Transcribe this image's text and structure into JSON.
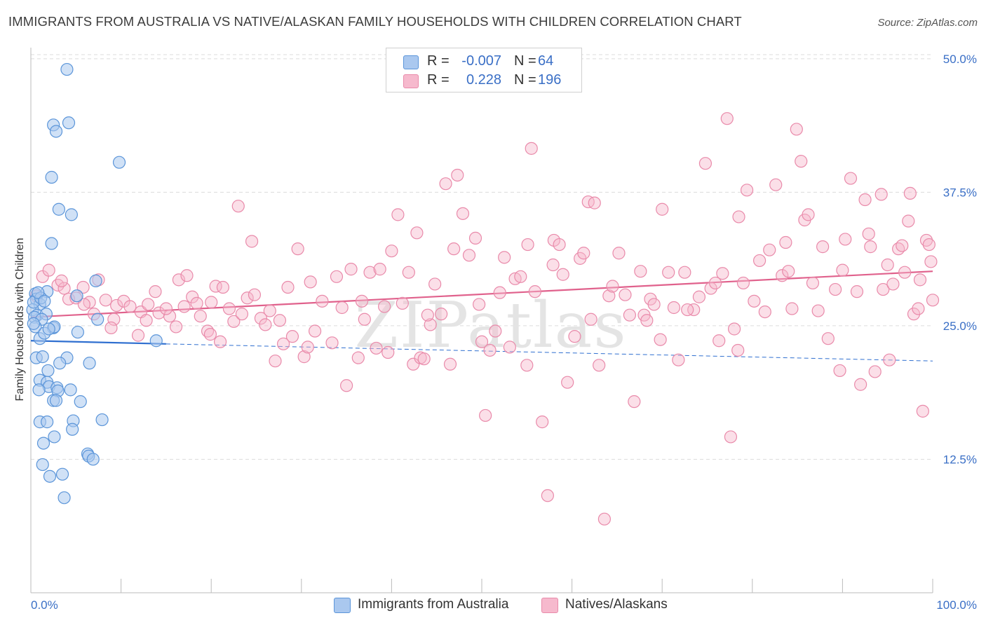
{
  "title": "IMMIGRANTS FROM AUSTRALIA VS NATIVE/ALASKAN FAMILY HOUSEHOLDS WITH CHILDREN CORRELATION CHART",
  "source": "Source: ZipAtlas.com",
  "watermark": "ZIPatlas",
  "legend": {
    "rows": [
      {
        "r_label": "R =",
        "r_value": "-0.007",
        "n_label": "N =",
        "n_value": "64"
      },
      {
        "r_label": "R =",
        "r_value": "0.228",
        "n_label": "N =",
        "n_value": "196"
      }
    ]
  },
  "bottom_legend": [
    "Immigrants from Australia",
    "Natives/Alaskans"
  ],
  "colors": {
    "blue_fill": "#aac8ef",
    "blue_stroke": "#5b95d9",
    "blue_line": "#2f6fd0",
    "pink_fill": "#f6b9cd",
    "pink_stroke": "#e98aaa",
    "pink_line": "#e0618c",
    "grid": "#dcdcdc",
    "axis_text": "#3a6fc6"
  },
  "chart_data": {
    "type": "scatter",
    "title": "IMMIGRANTS FROM AUSTRALIA VS NATIVE/ALASKAN FAMILY HOUSEHOLDS WITH CHILDREN CORRELATION CHART",
    "xlabel": "",
    "ylabel": "Family Households with Children",
    "xlim": [
      0,
      100
    ],
    "ylim": [
      0,
      51.3
    ],
    "x_tick_labels": [
      "0.0%",
      "100.0%"
    ],
    "y_ticks": [
      12.5,
      25.0,
      37.5,
      50.0
    ],
    "y_tick_labels": [
      "12.5%",
      "25.0%",
      "37.5%",
      "50.0%"
    ],
    "grid": "horizontal dashed",
    "series": [
      {
        "name": "Immigrants from Australia",
        "R": -0.007,
        "N": 64,
        "trend": {
          "solid": [
            [
              0,
              23.6
            ],
            [
              15,
              23.3
            ]
          ],
          "dashed": [
            [
              15,
              23.3
            ],
            [
              100,
              21.7
            ]
          ]
        },
        "points": [
          [
            4.0,
            49.0
          ],
          [
            4.2,
            44.0
          ],
          [
            2.5,
            43.8
          ],
          [
            2.8,
            43.2
          ],
          [
            9.8,
            40.3
          ],
          [
            2.3,
            38.9
          ],
          [
            3.1,
            35.9
          ],
          [
            4.5,
            35.4
          ],
          [
            2.3,
            32.7
          ],
          [
            0.5,
            28.0
          ],
          [
            1.8,
            28.2
          ],
          [
            0.6,
            27.5
          ],
          [
            1.0,
            27.0
          ],
          [
            0.2,
            26.5
          ],
          [
            0.7,
            26.0
          ],
          [
            1.7,
            26.1
          ],
          [
            0.4,
            25.8
          ],
          [
            1.2,
            25.6
          ],
          [
            2.5,
            24.8
          ],
          [
            0.5,
            24.9
          ],
          [
            2.6,
            24.9
          ],
          [
            1.0,
            23.8
          ],
          [
            1.5,
            24.3
          ],
          [
            0.6,
            22.0
          ],
          [
            1.3,
            22.1
          ],
          [
            4.0,
            22.0
          ],
          [
            3.2,
            21.5
          ],
          [
            6.5,
            21.5
          ],
          [
            1.9,
            20.8
          ],
          [
            1.0,
            19.9
          ],
          [
            1.8,
            19.7
          ],
          [
            2.0,
            19.3
          ],
          [
            0.9,
            19.0
          ],
          [
            2.9,
            19.2
          ],
          [
            3.0,
            18.9
          ],
          [
            4.4,
            19.0
          ],
          [
            2.5,
            18.0
          ],
          [
            2.8,
            18.0
          ],
          [
            5.5,
            17.9
          ],
          [
            1.0,
            16.0
          ],
          [
            1.8,
            16.0
          ],
          [
            4.7,
            16.1
          ],
          [
            7.9,
            16.2
          ],
          [
            4.6,
            15.3
          ],
          [
            2.6,
            14.6
          ],
          [
            1.4,
            14.0
          ],
          [
            6.3,
            13.0
          ],
          [
            6.4,
            12.8
          ],
          [
            6.9,
            12.5
          ],
          [
            1.3,
            12.0
          ],
          [
            3.5,
            11.1
          ],
          [
            2.1,
            10.9
          ],
          [
            3.7,
            8.9
          ],
          [
            13.9,
            23.6
          ],
          [
            5.2,
            24.4
          ],
          [
            7.4,
            25.6
          ],
          [
            7.2,
            29.2
          ],
          [
            5.1,
            27.8
          ],
          [
            0.3,
            27.2
          ],
          [
            1.1,
            27.6
          ],
          [
            0.8,
            28.1
          ],
          [
            1.5,
            27.3
          ],
          [
            0.3,
            25.2
          ],
          [
            2.0,
            24.7
          ]
        ]
      },
      {
        "name": "Natives/Alaskans",
        "R": 0.228,
        "N": 196,
        "trend": [
          [
            0,
            25.8
          ],
          [
            100,
            30.1
          ]
        ],
        "points": [
          [
            1.3,
            29.6
          ],
          [
            2.0,
            30.2
          ],
          [
            0.6,
            27.8
          ],
          [
            3.0,
            28.8
          ],
          [
            3.7,
            28.5
          ],
          [
            4.2,
            27.5
          ],
          [
            5.0,
            27.6
          ],
          [
            5.8,
            28.6
          ],
          [
            6.5,
            27.2
          ],
          [
            7.5,
            29.3
          ],
          [
            8.3,
            27.4
          ],
          [
            9.2,
            25.6
          ],
          [
            9.5,
            26.9
          ],
          [
            10.3,
            27.3
          ],
          [
            11.0,
            26.8
          ],
          [
            12.2,
            26.3
          ],
          [
            13.0,
            27.0
          ],
          [
            14.2,
            26.2
          ],
          [
            15.4,
            25.9
          ],
          [
            16.4,
            29.3
          ],
          [
            17.3,
            29.7
          ],
          [
            17.9,
            27.7
          ],
          [
            18.8,
            25.9
          ],
          [
            19.6,
            24.5
          ],
          [
            20.5,
            28.7
          ],
          [
            21.3,
            28.6
          ],
          [
            22.0,
            26.6
          ],
          [
            22.5,
            25.4
          ],
          [
            23.0,
            36.2
          ],
          [
            23.4,
            26.1
          ],
          [
            24.0,
            27.6
          ],
          [
            24.8,
            27.9
          ],
          [
            25.5,
            25.7
          ],
          [
            26.0,
            25.1
          ],
          [
            26.5,
            26.4
          ],
          [
            27.1,
            21.7
          ],
          [
            28.0,
            23.3
          ],
          [
            28.5,
            28.6
          ],
          [
            29.0,
            24.0
          ],
          [
            29.6,
            32.2
          ],
          [
            30.3,
            22.1
          ],
          [
            30.7,
            23.0
          ],
          [
            31.5,
            24.5
          ],
          [
            32.3,
            27.3
          ],
          [
            33.4,
            23.4
          ],
          [
            33.9,
            29.6
          ],
          [
            34.5,
            26.7
          ],
          [
            35.0,
            19.4
          ],
          [
            35.5,
            30.3
          ],
          [
            36.3,
            22.0
          ],
          [
            37.0,
            25.6
          ],
          [
            37.6,
            30.0
          ],
          [
            38.3,
            22.9
          ],
          [
            38.7,
            30.3
          ],
          [
            39.2,
            26.8
          ],
          [
            39.6,
            22.5
          ],
          [
            40.7,
            35.4
          ],
          [
            41.2,
            27.1
          ],
          [
            41.9,
            30.0
          ],
          [
            42.4,
            21.4
          ],
          [
            42.8,
            33.7
          ],
          [
            43.2,
            22.0
          ],
          [
            43.6,
            21.9
          ],
          [
            44.3,
            25.1
          ],
          [
            44.8,
            28.9
          ],
          [
            45.5,
            26.1
          ],
          [
            46.0,
            38.3
          ],
          [
            46.5,
            21.4
          ],
          [
            47.3,
            39.1
          ],
          [
            47.9,
            35.5
          ],
          [
            48.6,
            31.6
          ],
          [
            49.3,
            33.2
          ],
          [
            49.7,
            27.0
          ],
          [
            50.0,
            23.5
          ],
          [
            50.4,
            16.6
          ],
          [
            50.9,
            22.7
          ],
          [
            51.5,
            24.5
          ],
          [
            52.0,
            28.1
          ],
          [
            52.5,
            31.4
          ],
          [
            53.1,
            23.0
          ],
          [
            53.7,
            29.4
          ],
          [
            54.3,
            29.6
          ],
          [
            55.0,
            21.3
          ],
          [
            55.5,
            41.6
          ],
          [
            55.9,
            28.2
          ],
          [
            56.7,
            16.0
          ],
          [
            57.3,
            9.1
          ],
          [
            58.0,
            33.0
          ],
          [
            58.6,
            32.6
          ],
          [
            59.0,
            29.8
          ],
          [
            59.5,
            19.7
          ],
          [
            60.3,
            24.0
          ],
          [
            60.9,
            31.3
          ],
          [
            61.3,
            31.8
          ],
          [
            61.8,
            36.6
          ],
          [
            62.5,
            36.5
          ],
          [
            63.0,
            21.3
          ],
          [
            63.6,
            6.9
          ],
          [
            64.1,
            27.8
          ],
          [
            64.5,
            28.7
          ],
          [
            65.2,
            31.8
          ],
          [
            65.9,
            27.9
          ],
          [
            66.4,
            26.0
          ],
          [
            66.9,
            17.9
          ],
          [
            67.6,
            30.1
          ],
          [
            68.0,
            26.0
          ],
          [
            68.7,
            27.5
          ],
          [
            69.1,
            27.0
          ],
          [
            69.8,
            23.7
          ],
          [
            70.7,
            30.0
          ],
          [
            71.3,
            26.7
          ],
          [
            71.8,
            21.8
          ],
          [
            72.5,
            30.0
          ],
          [
            73.5,
            26.5
          ],
          [
            74.1,
            27.7
          ],
          [
            74.8,
            40.2
          ],
          [
            75.4,
            28.5
          ],
          [
            75.9,
            29.0
          ],
          [
            76.3,
            23.6
          ],
          [
            77.2,
            44.4
          ],
          [
            77.6,
            14.6
          ],
          [
            78.0,
            24.7
          ],
          [
            78.4,
            22.7
          ],
          [
            79.0,
            29.0
          ],
          [
            79.4,
            37.7
          ],
          [
            80.2,
            27.3
          ],
          [
            80.8,
            31.1
          ],
          [
            81.4,
            26.3
          ],
          [
            81.9,
            32.1
          ],
          [
            82.6,
            38.2
          ],
          [
            83.3,
            29.7
          ],
          [
            84.0,
            30.1
          ],
          [
            84.4,
            26.6
          ],
          [
            84.9,
            43.4
          ],
          [
            85.4,
            40.4
          ],
          [
            85.8,
            34.9
          ],
          [
            86.7,
            29.0
          ],
          [
            87.3,
            26.4
          ],
          [
            87.8,
            32.4
          ],
          [
            88.4,
            23.8
          ],
          [
            89.2,
            28.4
          ],
          [
            89.7,
            20.8
          ],
          [
            90.3,
            33.1
          ],
          [
            90.9,
            38.8
          ],
          [
            91.6,
            28.2
          ],
          [
            92.0,
            19.5
          ],
          [
            92.5,
            36.8
          ],
          [
            92.9,
            33.6
          ],
          [
            93.6,
            20.7
          ],
          [
            94.5,
            28.4
          ],
          [
            95.0,
            30.7
          ],
          [
            95.6,
            28.9
          ],
          [
            96.2,
            32.2
          ],
          [
            96.6,
            32.5
          ],
          [
            97.3,
            34.8
          ],
          [
            97.9,
            26.1
          ],
          [
            98.4,
            26.6
          ],
          [
            98.9,
            17.0
          ],
          [
            99.3,
            33.0
          ],
          [
            99.8,
            31.0
          ],
          [
            100.0,
            27.4
          ],
          [
            13.8,
            28.2
          ],
          [
            15.0,
            26.6
          ],
          [
            16.1,
            24.9
          ],
          [
            18.4,
            27.1
          ],
          [
            19.9,
            24.2
          ],
          [
            21.0,
            23.5
          ],
          [
            24.5,
            32.9
          ],
          [
            27.6,
            25.5
          ],
          [
            31.0,
            29.1
          ],
          [
            36.7,
            27.3
          ],
          [
            40.0,
            32.0
          ],
          [
            44.0,
            26.0
          ],
          [
            46.9,
            32.2
          ],
          [
            55.1,
            32.6
          ],
          [
            57.9,
            30.7
          ],
          [
            62.1,
            25.6
          ],
          [
            68.3,
            25.5
          ],
          [
            70.0,
            35.9
          ],
          [
            72.8,
            26.5
          ],
          [
            76.7,
            29.9
          ],
          [
            78.5,
            35.2
          ],
          [
            83.7,
            32.8
          ],
          [
            86.2,
            35.4
          ],
          [
            90.0,
            30.2
          ],
          [
            93.1,
            32.4
          ],
          [
            94.3,
            37.3
          ],
          [
            95.2,
            21.8
          ],
          [
            96.9,
            30.0
          ],
          [
            97.5,
            37.4
          ],
          [
            98.6,
            29.3
          ],
          [
            99.6,
            32.6
          ],
          [
            3.4,
            29.2
          ],
          [
            5.9,
            27.0
          ],
          [
            7.0,
            26.1
          ],
          [
            8.9,
            24.8
          ],
          [
            11.9,
            24.1
          ],
          [
            12.8,
            25.5
          ],
          [
            17.0,
            26.8
          ],
          [
            20.0,
            27.2
          ]
        ]
      }
    ]
  }
}
